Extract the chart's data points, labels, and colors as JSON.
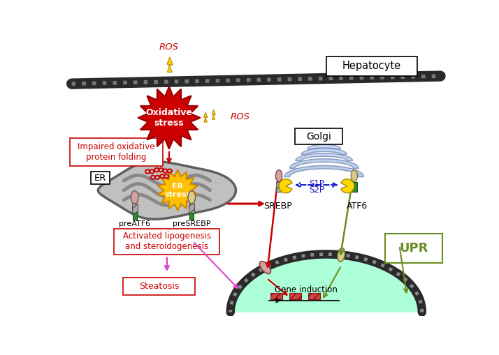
{
  "bg_color": "#ffffff",
  "hepatocyte_label": "Hepatocyte",
  "ros_label": "ROS",
  "oxidative_stress_label": "Oxidative\nstress",
  "impaired_label": "Impaired oxidative\nprotein folding",
  "er_label": "ER",
  "er_stress_label": "ER\nstress",
  "golgi_label": "Golgi",
  "s1p_label": "S1P",
  "s2p_label": "S2P",
  "srebp_label": "SREBP",
  "atf6_label": "ATF6",
  "preatf6_label": "preATF6",
  "presrebp_label": "preSREBP",
  "upr_label": "UPR",
  "gene_induction_label": "Gene induction",
  "activated_label": "Activated lipogenesis\nand steroidogenesis",
  "steatosis_label": "Steatosis",
  "red": "#cc0000",
  "green": "#6b8e23",
  "blue": "#1414cc",
  "magenta": "#dd44cc",
  "yellow": "#ffd700",
  "gray": "#808080"
}
